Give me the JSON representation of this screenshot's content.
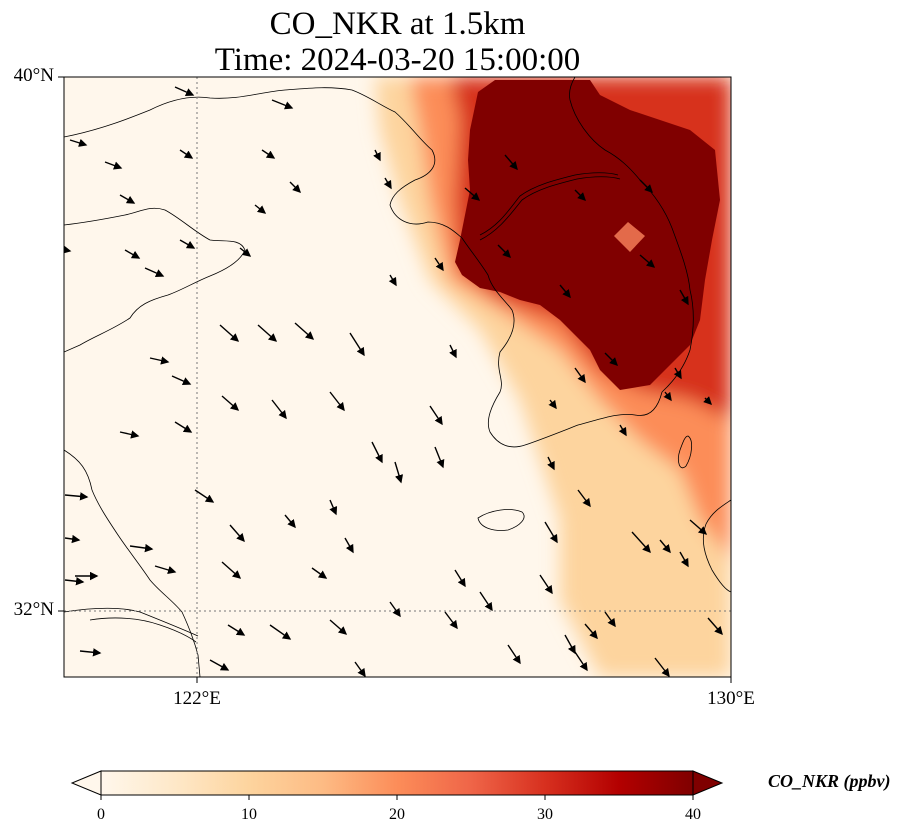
{
  "title": {
    "line1": "CO_NKR at 1.5km",
    "line2": "Time: 2024-03-20 15:00:00"
  },
  "map": {
    "variable": "CO_NKR",
    "level": "1.5km",
    "extent": {
      "lon_min": 120,
      "lon_max": 130,
      "lat_min": 31,
      "lat_max": 40
    },
    "lat_ticks": [
      {
        "value": 40,
        "label": "40°N"
      },
      {
        "value": 32,
        "label": "32°N"
      }
    ],
    "lon_ticks": [
      {
        "value": 122,
        "label": "122°E"
      },
      {
        "value": 130,
        "label": "130°E"
      }
    ],
    "gridlines": {
      "lon": [
        122
      ],
      "lat": [
        32
      ],
      "style": "dotted gray"
    },
    "plume_color_max": "#800000",
    "wind_vectors": "dense field of black arrows, predominantly pointing southeast"
  },
  "colorbar": {
    "label": "CO_NKR (ppbv)",
    "ticks": [
      "0",
      "10",
      "20",
      "30",
      "40"
    ],
    "min": 0,
    "max": 40,
    "extend": "both",
    "colormap": "OrRd",
    "colors": [
      "#fff7ec",
      "#fee8c8",
      "#fdd49e",
      "#fdbb84",
      "#fc8d59",
      "#ef6548",
      "#d7301f",
      "#b30000",
      "#7f0000"
    ]
  }
}
